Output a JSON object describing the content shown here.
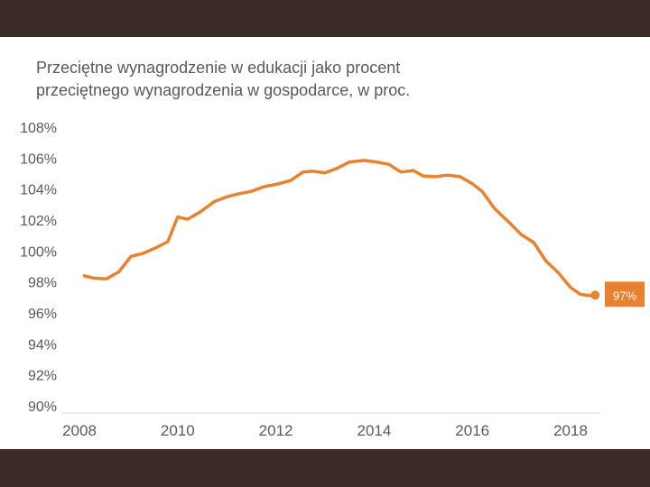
{
  "title_lines": [
    "Przeciętne wynagrodzenie w edukacji jako procent",
    "przeciętnego wynagrodzenia w gospodarce, w proc."
  ],
  "chart_data": {
    "type": "line",
    "title": "Przeciętne wynagrodzenie w edukacji jako procent przeciętnego wynagrodzenia w gospodarce, w proc.",
    "xlabel": "",
    "ylabel": "",
    "xlim": [
      2008,
      2018.6
    ],
    "ylim": [
      90,
      108
    ],
    "y_ticks": [
      108,
      106,
      104,
      102,
      100,
      98,
      96,
      94,
      92,
      90
    ],
    "y_tick_labels": [
      "108%",
      "106%",
      "104%",
      "102%",
      "100%",
      "98%",
      "96%",
      "94%",
      "92%",
      "90%"
    ],
    "x_ticks": [
      2008,
      2010,
      2012,
      2014,
      2016,
      2018
    ],
    "x_tick_labels": [
      "2008",
      "2010",
      "2012",
      "2014",
      "2016",
      "2018"
    ],
    "grid": false,
    "legend": "none",
    "color": "#e8822f",
    "series": [
      {
        "x": [
          2008.1,
          2008.3,
          2008.55,
          2008.8,
          2009.05,
          2009.3,
          2009.55,
          2009.8,
          2010.0,
          2010.2,
          2010.45,
          2010.75,
          2011.0,
          2011.25,
          2011.5,
          2011.75,
          2012.0,
          2012.3,
          2012.55,
          2012.75,
          2013.0,
          2013.25,
          2013.5,
          2013.8,
          2014.05,
          2014.3,
          2014.55,
          2014.8,
          2015.0,
          2015.25,
          2015.5,
          2015.75,
          2016.0,
          2016.2,
          2016.45,
          2016.75,
          2017.0,
          2017.25,
          2017.5,
          2017.75,
          2018.0,
          2018.2,
          2018.45
        ],
        "values": [
          98.4,
          98.25,
          98.2,
          98.65,
          99.65,
          99.85,
          100.2,
          100.6,
          102.2,
          102.05,
          102.5,
          103.2,
          103.5,
          103.7,
          103.85,
          104.15,
          104.3,
          104.55,
          105.1,
          105.15,
          105.05,
          105.35,
          105.75,
          105.85,
          105.75,
          105.6,
          105.1,
          105.2,
          104.85,
          104.8,
          104.9,
          104.8,
          104.35,
          103.85,
          102.75,
          101.85,
          101.05,
          100.55,
          99.35,
          98.6,
          97.65,
          97.2,
          97.1
        ]
      }
    ],
    "end_point": {
      "x": 2018.5,
      "value": 97.15
    },
    "end_label": "97%"
  }
}
